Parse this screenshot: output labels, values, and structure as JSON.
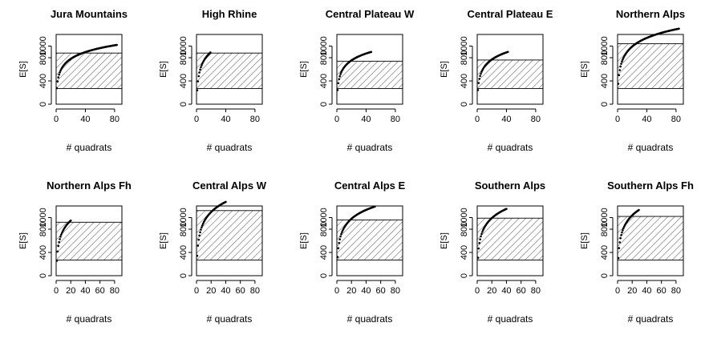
{
  "chart_data": [
    {
      "type": "scatter",
      "title": "Jura Mountains",
      "xlabel": "# quadrats",
      "ylabel": "E[S]",
      "xlim": [
        0,
        90
      ],
      "ylim": [
        0,
        1200
      ],
      "xticks": [
        "0",
        "40",
        "80"
      ],
      "yticks": [
        "0",
        "400",
        "800",
        "1000"
      ],
      "band": [
        270,
        880
      ],
      "curve": {
        "n_max": 83,
        "s_max": 1020
      }
    },
    {
      "type": "scatter",
      "title": "High Rhine",
      "xlabel": "# quadrats",
      "ylabel": "E[S]",
      "xlim": [
        0,
        90
      ],
      "ylim": [
        0,
        1200
      ],
      "xticks": [
        "0",
        "40",
        "80"
      ],
      "yticks": [
        "0",
        "400",
        "800",
        "1000"
      ],
      "band": [
        270,
        880
      ],
      "curve": {
        "n_max": 19,
        "s_max": 890
      }
    },
    {
      "type": "scatter",
      "title": "Central Plateau W",
      "xlabel": "# quadrats",
      "ylabel": "E[S]",
      "xlim": [
        0,
        90
      ],
      "ylim": [
        0,
        1200
      ],
      "xticks": [
        "0",
        "40",
        "80"
      ],
      "yticks": [
        "0",
        "400",
        "800",
        "1000"
      ],
      "band": [
        270,
        740
      ],
      "curve": {
        "n_max": 47,
        "s_max": 900
      }
    },
    {
      "type": "scatter",
      "title": "Central Plateau E",
      "xlabel": "# quadrats",
      "ylabel": "E[S]",
      "xlim": [
        0,
        90
      ],
      "ylim": [
        0,
        1200
      ],
      "xticks": [
        "0",
        "40",
        "80"
      ],
      "yticks": [
        "0",
        "400",
        "800",
        "1000"
      ],
      "band": [
        270,
        760
      ],
      "curve": {
        "n_max": 42,
        "s_max": 900
      }
    },
    {
      "type": "scatter",
      "title": "Northern Alps",
      "xlabel": "# quadrats",
      "ylabel": "E[S]",
      "xlim": [
        0,
        90
      ],
      "ylim": [
        0,
        1200
      ],
      "xticks": [
        "0",
        "40",
        "80"
      ],
      "yticks": [
        "0",
        "400",
        "800",
        "1000"
      ],
      "band": [
        270,
        1040
      ],
      "curve": {
        "n_max": 84,
        "s_max": 1300
      }
    },
    {
      "type": "scatter",
      "title": "Northern Alps Fh",
      "xlabel": "# quadrats",
      "ylabel": "E[S]",
      "xlim": [
        0,
        90
      ],
      "ylim": [
        0,
        1200
      ],
      "xticks": [
        "0",
        "20",
        "40",
        "60",
        "80"
      ],
      "yticks": [
        "0",
        "400",
        "800",
        "1000"
      ],
      "band": [
        270,
        920
      ],
      "curve": {
        "n_max": 20,
        "s_max": 950
      }
    },
    {
      "type": "scatter",
      "title": "Central Alps W",
      "xlabel": "# quadrats",
      "ylabel": "E[S]",
      "xlim": [
        0,
        90
      ],
      "ylim": [
        0,
        1200
      ],
      "xticks": [
        "0",
        "20",
        "40",
        "60",
        "80"
      ],
      "yticks": [
        "0",
        "400",
        "800",
        "1000"
      ],
      "band": [
        270,
        1120
      ],
      "curve": {
        "n_max": 40,
        "s_max": 1270
      }
    },
    {
      "type": "scatter",
      "title": "Central Alps E",
      "xlabel": "# quadrats",
      "ylabel": "E[S]",
      "xlim": [
        0,
        90
      ],
      "ylim": [
        0,
        1200
      ],
      "xticks": [
        "0",
        "20",
        "40",
        "60",
        "80"
      ],
      "yticks": [
        "0",
        "400",
        "800",
        "1000"
      ],
      "band": [
        270,
        960
      ],
      "curve": {
        "n_max": 52,
        "s_max": 1190
      }
    },
    {
      "type": "scatter",
      "title": "Southern Alps",
      "xlabel": "# quadrats",
      "ylabel": "E[S]",
      "xlim": [
        0,
        90
      ],
      "ylim": [
        0,
        1200
      ],
      "xticks": [
        "0",
        "20",
        "40",
        "60",
        "80"
      ],
      "yticks": [
        "0",
        "400",
        "800",
        "1000"
      ],
      "band": [
        270,
        990
      ],
      "curve": {
        "n_max": 40,
        "s_max": 1150
      }
    },
    {
      "type": "scatter",
      "title": "Southern Alps Fh",
      "xlabel": "# quadrats",
      "ylabel": "E[S]",
      "xlim": [
        0,
        90
      ],
      "ylim": [
        0,
        1200
      ],
      "xticks": [
        "0",
        "20",
        "40",
        "60",
        "80"
      ],
      "yticks": [
        "0",
        "400",
        "800",
        "1000"
      ],
      "band": [
        270,
        1020
      ],
      "curve": {
        "n_max": 29,
        "s_max": 1130
      }
    }
  ]
}
